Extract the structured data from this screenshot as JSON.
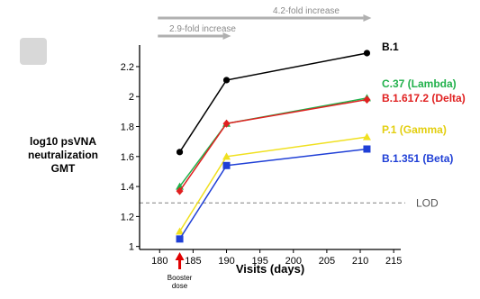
{
  "chart_data": {
    "type": "line",
    "ylabel": [
      "log10 psVNA",
      "neutralization",
      "GMT"
    ],
    "xlabel": "Visits (days)",
    "xlim": [
      177,
      217
    ],
    "ylim": [
      0.98,
      2.38
    ],
    "xticks": [
      180,
      185,
      190,
      195,
      200,
      205,
      210,
      215
    ],
    "yticks": [
      1,
      1.2,
      1.4,
      1.6,
      1.8,
      2,
      2.2
    ],
    "ytick_labels": [
      "1",
      "1.2",
      "1.4",
      "1.6",
      "1.8",
      "2",
      "2.2"
    ],
    "x": [
      183,
      190,
      211
    ],
    "series": [
      {
        "name": "B.1",
        "color": "#000000",
        "marker": "circle",
        "values": [
          1.63,
          2.11,
          2.29
        ]
      },
      {
        "name": "C.37 (Lambda)",
        "color": "#22b14c",
        "marker": "triangle",
        "values": [
          1.4,
          1.82,
          1.99
        ]
      },
      {
        "name": "B.1.617.2 (Delta)",
        "color": "#e02020",
        "marker": "diamond",
        "values": [
          1.37,
          1.82,
          1.98
        ]
      },
      {
        "name": "P.1 (Gamma)",
        "color": "#f0e020",
        "marker": "triangle",
        "values": [
          1.1,
          1.6,
          1.73
        ]
      },
      {
        "name": "B.1.351 (Beta)",
        "color": "#1f3fd6",
        "marker": "square",
        "values": [
          1.05,
          1.54,
          1.65
        ]
      }
    ],
    "reference_line": {
      "label": "LOD",
      "y": 1.29,
      "color": "#999999"
    },
    "fold_annotations": [
      {
        "label": "2.9-fold increase",
        "x_from": 180,
        "x_to": 190
      },
      {
        "label": "4.2-fold increase",
        "x_from": 180,
        "x_to": 211
      }
    ],
    "event_marker": {
      "label": [
        "Booster",
        "dose"
      ],
      "x": 183,
      "color": "#e00000"
    }
  }
}
